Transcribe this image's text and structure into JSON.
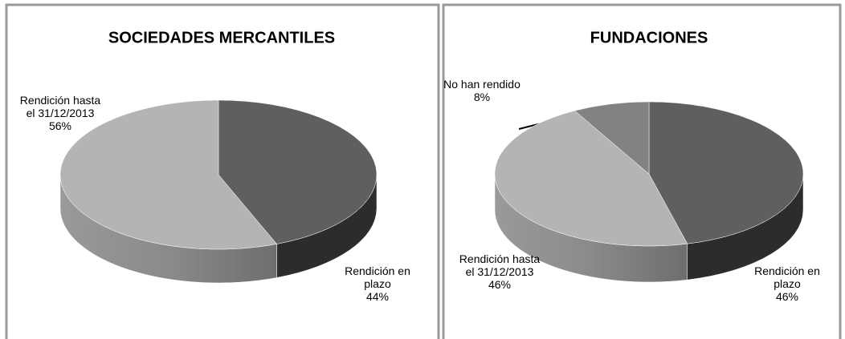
{
  "chart_data": [
    {
      "type": "pie3d",
      "title": "SOCIEDADES MERCANTILES",
      "categories": [
        "Rendición en plazo",
        "Rendición hasta el 31/12/2013"
      ],
      "values": [
        44,
        56
      ],
      "value_labels": [
        "44%",
        "56%"
      ],
      "colors": [
        "#5f5f5f",
        "#b4b4b4"
      ]
    },
    {
      "type": "pie3d",
      "title": "FUNDACIONES",
      "categories": [
        "Rendición en plazo",
        "Rendición hasta el 31/12/2013",
        "No han rendido"
      ],
      "values": [
        46,
        46,
        8
      ],
      "value_labels": [
        "46%",
        "46%",
        "8%"
      ],
      "colors": [
        "#5f5f5f",
        "#b4b4b4",
        "#828282"
      ]
    }
  ]
}
